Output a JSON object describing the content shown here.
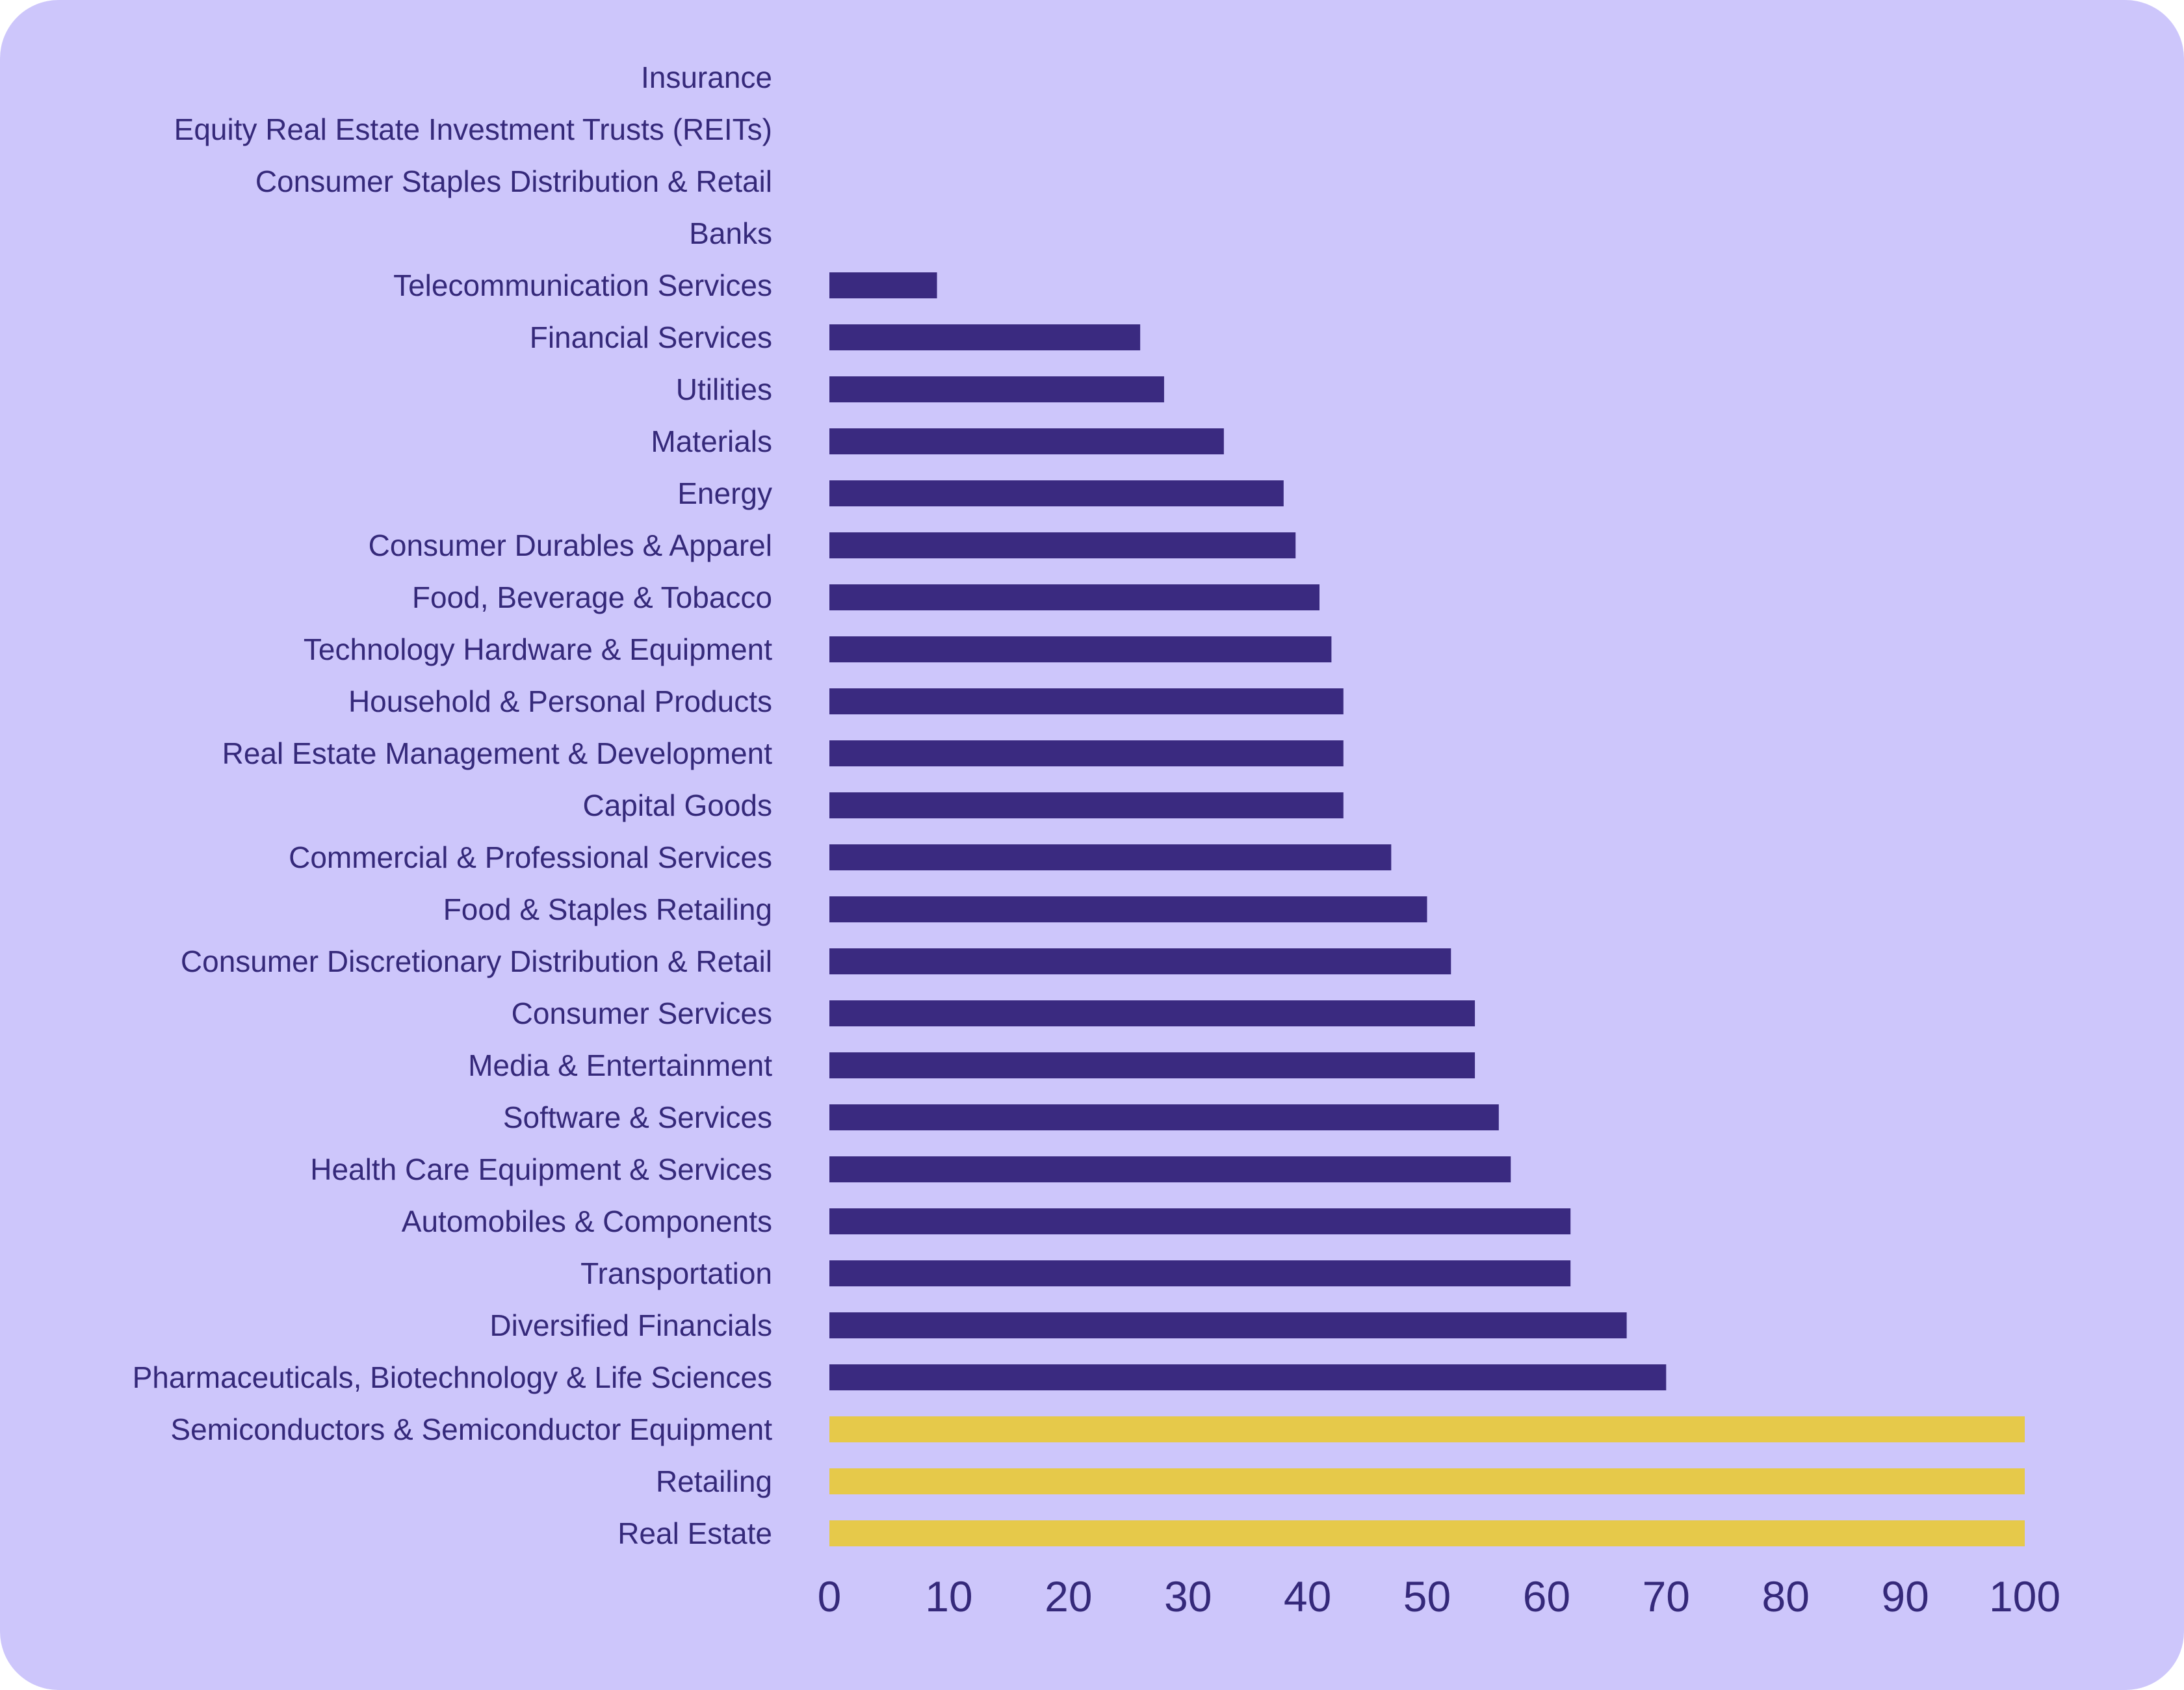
{
  "chart_data": {
    "type": "bar",
    "orientation": "horizontal",
    "title": "",
    "xlabel": "",
    "ylabel": "",
    "xlim": [
      0,
      100
    ],
    "grid": false,
    "legend": "none",
    "colors": {
      "background": "#cdc6fb",
      "bar": "#3a2a80",
      "highlight": "#e6c94a",
      "text": "#35297a"
    },
    "x_ticks": [
      "0",
      "10",
      "20",
      "30",
      "40",
      "50",
      "60",
      "70",
      "80",
      "90",
      "100"
    ],
    "categories": [
      "Insurance",
      "Equity Real Estate Investment Trusts (REITs)",
      "Consumer Staples Distribution & Retail",
      "Banks",
      "Telecommunication Services",
      "Financial Services",
      "Utilities",
      "Materials",
      "Energy",
      "Consumer Durables & Apparel",
      "Food, Beverage & Tobacco",
      "Technology Hardware & Equipment",
      "Household & Personal Products",
      "Real Estate Management & Development",
      "Capital Goods",
      "Commercial & Professional Services",
      "Food & Staples Retailing",
      "Consumer Discretionary Distribution & Retail",
      "Consumer Services",
      "Media & Entertainment",
      "Software & Services",
      "Health Care Equipment & Services",
      "Automobiles & Components",
      "Transportation",
      "Diversified Financials",
      "Pharmaceuticals, Biotechnology & Life Sciences",
      "Semiconductors & Semiconductor Equipment",
      "Retailing",
      "Real Estate"
    ],
    "values": [
      0,
      0,
      0,
      0,
      9,
      26,
      28,
      33,
      38,
      39,
      41,
      42,
      43,
      43,
      43,
      47,
      50,
      52,
      54,
      54,
      56,
      57,
      62,
      62,
      66.7,
      70,
      100,
      100,
      100
    ],
    "highlighted": [
      false,
      false,
      false,
      false,
      false,
      false,
      false,
      false,
      false,
      false,
      false,
      false,
      false,
      false,
      false,
      false,
      false,
      false,
      false,
      false,
      false,
      false,
      false,
      false,
      false,
      false,
      true,
      true,
      true
    ]
  }
}
